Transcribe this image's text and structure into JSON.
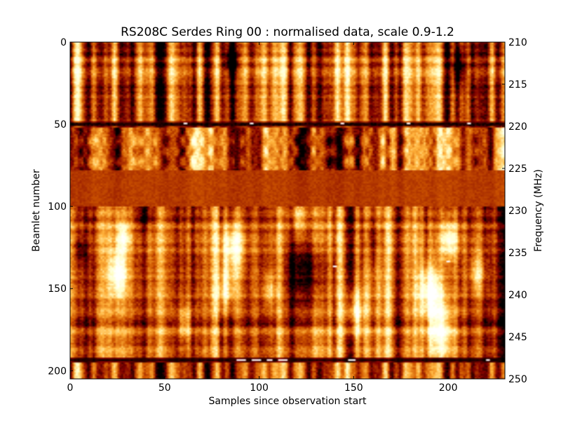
{
  "chart_data": {
    "type": "heatmap",
    "title": "RS208C Serdes Ring 00 : normalised data, scale 0.9-1.2",
    "xlabel": "Samples since observation start",
    "ylabel": "Beamlet number",
    "y2label": "Frequency (MHz)",
    "xlim": [
      0,
      230
    ],
    "ylim": [
      0,
      205
    ],
    "y_inverted": true,
    "y2lim": [
      210,
      250
    ],
    "color_scale": [
      0.9,
      1.2
    ],
    "colormap": "afmhot",
    "colormap_stops": [
      "#000000",
      "#7f0000",
      "#d25a00",
      "#ffb23b",
      "#ffffc8",
      "#ffffff"
    ],
    "xticks": [
      0,
      50,
      100,
      150,
      200
    ],
    "yticks": [
      0,
      50,
      100,
      150,
      200
    ],
    "y2ticks": [
      210,
      215,
      220,
      225,
      230,
      235,
      240,
      245,
      250
    ],
    "grid": false,
    "n_samples": 230,
    "n_beamlets": 205,
    "bands": [
      {
        "beamlets": [
          0,
          48
        ],
        "description": "strong vertical streaks, dark dips near samples 85 and 205"
      },
      {
        "beamlets": [
          48,
          52
        ],
        "description": "dark horizontal line with white dashes"
      },
      {
        "beamlets": [
          52,
          78
        ],
        "description": "mixed bright/dark vertical streaks"
      },
      {
        "beamlets": [
          78,
          100
        ],
        "description": "flat band near 1.0 (uniform brown)"
      },
      {
        "beamlets": [
          100,
          190
        ],
        "description": "bright blobs near samples 25, 85, 150, 190, 200 with dark streaks"
      },
      {
        "beamlets": [
          192,
          195
        ],
        "description": "dark horizontal line with white dashes near samples 88-120 and 148"
      },
      {
        "beamlets": [
          195,
          205
        ],
        "description": "vertical streaks"
      }
    ]
  }
}
